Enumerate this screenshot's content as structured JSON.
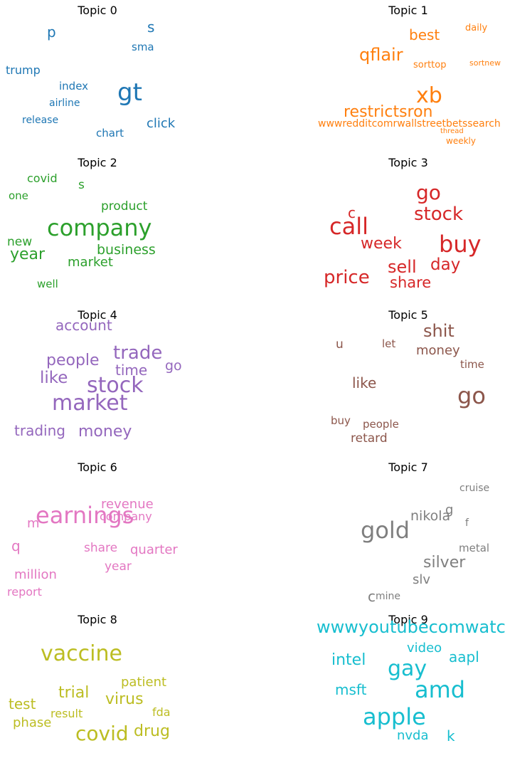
{
  "chart_data": {
    "type": "wordcloud",
    "panels": [
      {
        "title": "Topic 0",
        "color": "#1f77b4",
        "words": [
          {
            "text": "gt",
            "weight": 1.0
          },
          {
            "text": "click",
            "weight": 0.45
          },
          {
            "text": "trump",
            "weight": 0.4
          },
          {
            "text": "p",
            "weight": 0.5
          },
          {
            "text": "s",
            "weight": 0.5
          },
          {
            "text": "index",
            "weight": 0.4
          },
          {
            "text": "sma",
            "weight": 0.38
          },
          {
            "text": "airline",
            "weight": 0.37
          },
          {
            "text": "release",
            "weight": 0.36
          },
          {
            "text": "chart",
            "weight": 0.38
          }
        ]
      },
      {
        "title": "Topic 1",
        "color": "#ff7f0e",
        "words": [
          {
            "text": "xb",
            "weight": 1.0
          },
          {
            "text": "restrictsron",
            "weight": 0.75
          },
          {
            "text": "qflair",
            "weight": 0.75
          },
          {
            "text": "best",
            "weight": 0.65
          },
          {
            "text": "wwwredditcomrwallstreetbetssearch",
            "weight": 0.45
          },
          {
            "text": "daily",
            "weight": 0.4
          },
          {
            "text": "sorttop",
            "weight": 0.4
          },
          {
            "text": "sortnew",
            "weight": 0.32
          },
          {
            "text": "thread",
            "weight": 0.3
          },
          {
            "text": "weekly",
            "weight": 0.35
          }
        ]
      },
      {
        "title": "Topic 2",
        "color": "#2ca02c",
        "words": [
          {
            "text": "company",
            "weight": 1.0
          },
          {
            "text": "year",
            "weight": 0.6
          },
          {
            "text": "business",
            "weight": 0.55
          },
          {
            "text": "market",
            "weight": 0.5
          },
          {
            "text": "product",
            "weight": 0.48
          },
          {
            "text": "covid",
            "weight": 0.45
          },
          {
            "text": "new",
            "weight": 0.47
          },
          {
            "text": "s",
            "weight": 0.45
          },
          {
            "text": "one",
            "weight": 0.4
          },
          {
            "text": "well",
            "weight": 0.4
          }
        ]
      },
      {
        "title": "Topic 3",
        "color": "#d62728",
        "words": [
          {
            "text": "call",
            "weight": 1.0
          },
          {
            "text": "buy",
            "weight": 0.95
          },
          {
            "text": "go",
            "weight": 0.9
          },
          {
            "text": "stock",
            "weight": 0.8
          },
          {
            "text": "price",
            "weight": 0.8
          },
          {
            "text": "sell",
            "weight": 0.7
          },
          {
            "text": "share",
            "weight": 0.68
          },
          {
            "text": "day",
            "weight": 0.7
          },
          {
            "text": "week",
            "weight": 0.65
          },
          {
            "text": "c",
            "weight": 0.6
          }
        ]
      },
      {
        "title": "Topic 4",
        "color": "#9467bd",
        "words": [
          {
            "text": "stock",
            "weight": 1.0
          },
          {
            "text": "market",
            "weight": 1.0
          },
          {
            "text": "trade",
            "weight": 0.85
          },
          {
            "text": "like",
            "weight": 0.75
          },
          {
            "text": "people",
            "weight": 0.72
          },
          {
            "text": "money",
            "weight": 0.72
          },
          {
            "text": "time",
            "weight": 0.68
          },
          {
            "text": "account",
            "weight": 0.65
          },
          {
            "text": "trading",
            "weight": 0.65
          },
          {
            "text": "go",
            "weight": 0.65
          }
        ]
      },
      {
        "title": "Topic 5",
        "color": "#8c564b",
        "words": [
          {
            "text": "go",
            "weight": 1.0
          },
          {
            "text": "shit",
            "weight": 0.75
          },
          {
            "text": "like",
            "weight": 0.65
          },
          {
            "text": "money",
            "weight": 0.6
          },
          {
            "text": "retard",
            "weight": 0.55
          },
          {
            "text": "u",
            "weight": 0.55
          },
          {
            "text": "time",
            "weight": 0.5
          },
          {
            "text": "people",
            "weight": 0.5
          },
          {
            "text": "let",
            "weight": 0.5
          },
          {
            "text": "buy",
            "weight": 0.5
          }
        ]
      },
      {
        "title": "Topic 6",
        "color": "#e377c2",
        "words": [
          {
            "text": "earnings",
            "weight": 1.0
          },
          {
            "text": "quarter",
            "weight": 0.55
          },
          {
            "text": "revenue",
            "weight": 0.55
          },
          {
            "text": "million",
            "weight": 0.52
          },
          {
            "text": "q",
            "weight": 0.6
          },
          {
            "text": "year",
            "weight": 0.5
          },
          {
            "text": "share",
            "weight": 0.5
          },
          {
            "text": "company",
            "weight": 0.48
          },
          {
            "text": "report",
            "weight": 0.48
          },
          {
            "text": "m",
            "weight": 0.55
          }
        ]
      },
      {
        "title": "Topic 7",
        "color": "#7f7f7f",
        "words": [
          {
            "text": "gold",
            "weight": 1.0
          },
          {
            "text": "silver",
            "weight": 0.7
          },
          {
            "text": "nikola",
            "weight": 0.55
          },
          {
            "text": "slv",
            "weight": 0.5
          },
          {
            "text": "metal",
            "weight": 0.45
          },
          {
            "text": "g",
            "weight": 0.45
          },
          {
            "text": "c",
            "weight": 0.5
          },
          {
            "text": "mine",
            "weight": 0.42
          },
          {
            "text": "cruise",
            "weight": 0.42
          },
          {
            "text": "f",
            "weight": 0.4
          }
        ]
      },
      {
        "title": "Topic 8",
        "color": "#bcbd22",
        "words": [
          {
            "text": "vaccine",
            "weight": 1.0
          },
          {
            "text": "covid",
            "weight": 0.85
          },
          {
            "text": "drug",
            "weight": 0.65
          },
          {
            "text": "trial",
            "weight": 0.6
          },
          {
            "text": "virus",
            "weight": 0.6
          },
          {
            "text": "test",
            "weight": 0.55
          },
          {
            "text": "patient",
            "weight": 0.55
          },
          {
            "text": "phase",
            "weight": 0.5
          },
          {
            "text": "result",
            "weight": 0.45
          },
          {
            "text": "fda",
            "weight": 0.45
          }
        ]
      },
      {
        "title": "Topic 9",
        "color": "#17becf",
        "words": [
          {
            "text": "apple",
            "weight": 1.0
          },
          {
            "text": "amd",
            "weight": 0.95
          },
          {
            "text": "gay",
            "weight": 0.9
          },
          {
            "text": "wwwyoutubecomwatch",
            "weight": 0.8
          },
          {
            "text": "intel",
            "weight": 0.7
          },
          {
            "text": "aapl",
            "weight": 0.68
          },
          {
            "text": "msft",
            "weight": 0.65
          },
          {
            "text": "video",
            "weight": 0.6
          },
          {
            "text": "nvda",
            "weight": 0.55
          },
          {
            "text": "k",
            "weight": 0.6
          }
        ]
      }
    ]
  }
}
